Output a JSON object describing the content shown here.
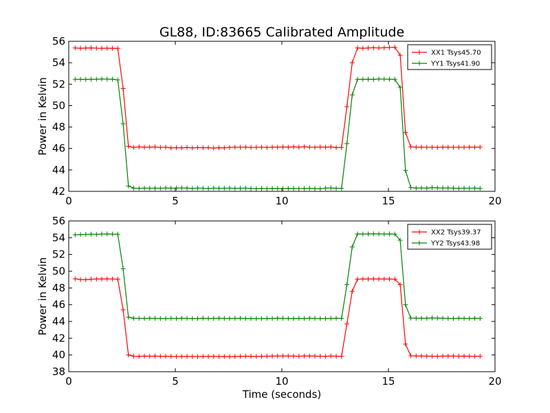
{
  "figure": {
    "title": "GL88, ID:83665 Calibrated Amplitude"
  },
  "chart_data": [
    {
      "type": "line",
      "xlabel": "",
      "ylabel": "Power in Kelvin",
      "xlim": [
        0,
        20
      ],
      "ylim": [
        42,
        56
      ],
      "xticks": [
        0,
        5,
        10,
        15,
        20
      ],
      "yticks": [
        42,
        44,
        46,
        48,
        50,
        52,
        54,
        56
      ],
      "grid": false,
      "legend_position": "top-right",
      "x": [
        0.3,
        0.55,
        0.8,
        1.05,
        1.3,
        1.55,
        1.8,
        2.05,
        2.3,
        2.55,
        2.8,
        3.05,
        3.3,
        3.55,
        3.8,
        4.05,
        4.3,
        4.55,
        4.8,
        5.05,
        5.3,
        5.55,
        5.8,
        6.05,
        6.3,
        6.55,
        6.8,
        7.05,
        7.3,
        7.55,
        7.8,
        8.05,
        8.3,
        8.55,
        8.8,
        9.05,
        9.3,
        9.55,
        9.8,
        10.05,
        10.3,
        10.55,
        10.8,
        11.05,
        11.3,
        11.55,
        11.8,
        12.05,
        12.3,
        12.55,
        12.8,
        13.05,
        13.3,
        13.55,
        13.8,
        14.05,
        14.3,
        14.55,
        14.8,
        15.05,
        15.3,
        15.55,
        15.8,
        16.05,
        16.3,
        16.55,
        16.8,
        17.05,
        17.3,
        17.55,
        17.8,
        18.05,
        18.3,
        18.55,
        18.8,
        19.05,
        19.3
      ],
      "series": [
        {
          "name": "XX1 Tsys45.70",
          "color": "#ff0000",
          "values": [
            55.38,
            55.35,
            55.37,
            55.38,
            55.36,
            55.35,
            55.36,
            55.35,
            55.34,
            51.6,
            46.2,
            46.1,
            46.15,
            46.12,
            46.13,
            46.14,
            46.1,
            46.12,
            46.05,
            46.08,
            46.06,
            46.1,
            46.05,
            46.09,
            46.07,
            46.08,
            46.04,
            46.07,
            46.06,
            46.1,
            46.12,
            46.11,
            46.13,
            46.1,
            46.11,
            46.12,
            46.1,
            46.13,
            46.12,
            46.14,
            46.13,
            46.15,
            46.13,
            46.16,
            46.12,
            46.11,
            46.14,
            46.12,
            46.15,
            46.08,
            46.1,
            49.9,
            54.0,
            55.38,
            55.35,
            55.38,
            55.4,
            55.38,
            55.4,
            55.42,
            55.45,
            54.7,
            47.5,
            46.15,
            46.12,
            46.13,
            46.11,
            46.12,
            46.1,
            46.13,
            46.12,
            46.11,
            46.12,
            46.11,
            46.13,
            46.12,
            46.13
          ]
        },
        {
          "name": "YY1 Tsys41.90",
          "color": "#008000",
          "values": [
            52.45,
            52.45,
            52.44,
            52.45,
            52.46,
            52.48,
            52.47,
            52.46,
            52.4,
            48.3,
            42.5,
            42.3,
            42.28,
            42.3,
            42.29,
            42.3,
            42.29,
            42.31,
            42.3,
            42.3,
            42.32,
            42.3,
            42.28,
            42.3,
            42.29,
            42.27,
            42.3,
            42.29,
            42.29,
            42.3,
            42.28,
            42.29,
            42.3,
            42.27,
            42.25,
            42.27,
            42.26,
            42.28,
            42.27,
            42.26,
            42.28,
            42.27,
            42.26,
            42.27,
            42.29,
            42.25,
            42.24,
            42.3,
            42.32,
            42.28,
            42.28,
            46.45,
            51.0,
            52.45,
            52.45,
            52.46,
            52.44,
            52.48,
            52.47,
            52.46,
            52.45,
            51.7,
            43.95,
            42.35,
            42.3,
            42.32,
            42.3,
            42.35,
            42.33,
            42.31,
            42.32,
            42.3,
            42.28,
            42.3,
            42.29,
            42.3,
            42.28
          ]
        }
      ]
    },
    {
      "type": "line",
      "xlabel": "Time (seconds)",
      "ylabel": "Power in Kelvin",
      "xlim": [
        0,
        20
      ],
      "ylim": [
        38,
        56
      ],
      "xticks": [
        0,
        5,
        10,
        15,
        20
      ],
      "yticks": [
        38,
        40,
        42,
        44,
        46,
        48,
        50,
        52,
        54,
        56
      ],
      "grid": false,
      "legend_position": "top-right",
      "x": [
        0.3,
        0.55,
        0.8,
        1.05,
        1.3,
        1.55,
        1.8,
        2.05,
        2.3,
        2.55,
        2.8,
        3.05,
        3.3,
        3.55,
        3.8,
        4.05,
        4.3,
        4.55,
        4.8,
        5.05,
        5.3,
        5.55,
        5.8,
        6.05,
        6.3,
        6.55,
        6.8,
        7.05,
        7.3,
        7.55,
        7.8,
        8.05,
        8.3,
        8.55,
        8.8,
        9.05,
        9.3,
        9.55,
        9.8,
        10.05,
        10.3,
        10.55,
        10.8,
        11.05,
        11.3,
        11.55,
        11.8,
        12.05,
        12.3,
        12.55,
        12.8,
        13.05,
        13.3,
        13.55,
        13.8,
        14.05,
        14.3,
        14.55,
        14.8,
        15.05,
        15.3,
        15.55,
        15.8,
        16.05,
        16.3,
        16.55,
        16.8,
        17.05,
        17.3,
        17.55,
        17.8,
        18.05,
        18.3,
        18.55,
        18.8,
        19.05,
        19.3
      ],
      "series": [
        {
          "name": "XX2 Tsys39.37",
          "color": "#ff0000",
          "values": [
            49.1,
            49.0,
            48.98,
            49.05,
            49.07,
            49.06,
            49.08,
            49.07,
            49.05,
            45.4,
            40.0,
            39.85,
            39.84,
            39.86,
            39.85,
            39.86,
            39.84,
            39.85,
            39.83,
            39.81,
            39.82,
            39.83,
            39.82,
            39.81,
            39.83,
            39.82,
            39.83,
            39.81,
            39.82,
            39.8,
            39.82,
            39.84,
            39.85,
            39.84,
            39.82,
            39.84,
            39.85,
            39.86,
            39.87,
            39.88,
            39.87,
            39.86,
            39.85,
            39.87,
            39.88,
            39.86,
            39.85,
            39.83,
            39.87,
            39.85,
            39.84,
            43.7,
            47.6,
            49.05,
            49.07,
            49.06,
            49.08,
            49.06,
            49.07,
            49.06,
            49.05,
            48.4,
            41.3,
            39.9,
            39.88,
            39.87,
            39.86,
            39.85,
            39.84,
            39.86,
            39.87,
            39.86,
            39.85,
            39.86,
            39.85,
            39.84,
            39.85
          ]
        },
        {
          "name": "YY2 Tsys43.98",
          "color": "#008000",
          "values": [
            54.35,
            54.38,
            54.4,
            54.42,
            54.4,
            54.44,
            54.45,
            54.43,
            54.42,
            50.3,
            44.5,
            44.38,
            44.37,
            44.36,
            44.38,
            44.37,
            44.36,
            44.35,
            44.37,
            44.36,
            44.38,
            44.37,
            44.35,
            44.36,
            44.38,
            44.36,
            44.37,
            44.38,
            44.37,
            44.36,
            44.37,
            44.38,
            44.36,
            44.35,
            44.34,
            44.35,
            44.36,
            44.37,
            44.38,
            44.37,
            44.36,
            44.35,
            44.37,
            44.36,
            44.38,
            44.37,
            44.35,
            44.36,
            44.37,
            44.38,
            44.36,
            48.4,
            52.9,
            54.45,
            54.44,
            54.45,
            54.46,
            54.45,
            54.44,
            54.45,
            54.43,
            53.7,
            46.0,
            44.4,
            44.38,
            44.39,
            44.38,
            44.42,
            44.4,
            44.38,
            44.37,
            44.36,
            44.38,
            44.37,
            44.36,
            44.38,
            44.37
          ]
        }
      ]
    }
  ]
}
